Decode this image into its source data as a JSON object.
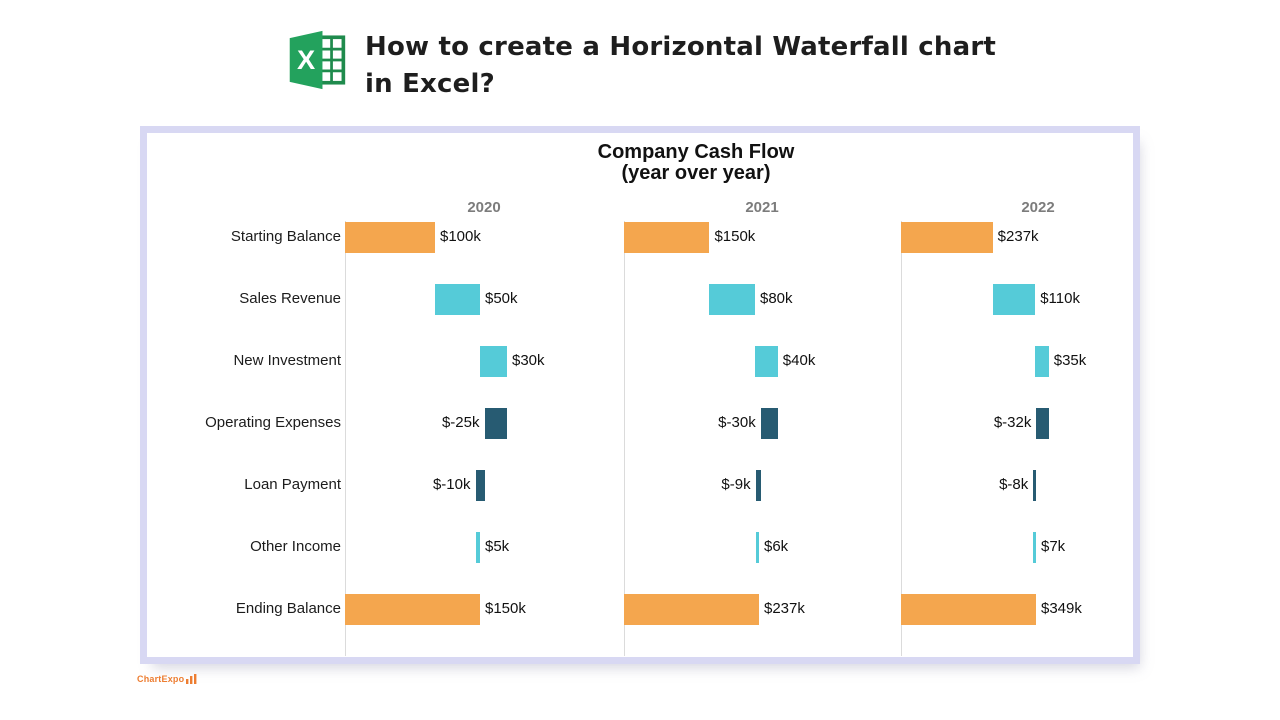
{
  "header": {
    "title_line1": "How to create a Horizontal Waterfall chart",
    "title_line2": "in Excel?",
    "excel_letter": "X"
  },
  "watermark": {
    "text": "ChartExpo",
    "icon": "bar-chart-icon",
    "color": "#ED7D31"
  },
  "chart_data": {
    "type": "bar",
    "subtype": "horizontal-waterfall",
    "orientation": "horizontal",
    "title": "Company Cash Flow",
    "subtitle": "(year over year)",
    "categories": [
      "Starting Balance",
      "Sales Revenue",
      "New Investment",
      "Operating Expenses",
      "Loan Payment",
      "Other Income",
      "Ending Balance"
    ],
    "row_types": [
      "total",
      "increase",
      "increase",
      "decrease",
      "decrease",
      "increase",
      "total"
    ],
    "series": [
      {
        "name": "2020",
        "values": [
          100,
          50,
          30,
          -25,
          -10,
          5,
          150
        ],
        "labels": [
          "$100k",
          "$50k",
          "$30k",
          "$-25k",
          "$-10k",
          "$5k",
          "$150k"
        ]
      },
      {
        "name": "2021",
        "values": [
          150,
          80,
          40,
          -30,
          -9,
          6,
          237
        ],
        "labels": [
          "$150k",
          "$80k",
          "$40k",
          "$-30k",
          "$-9k",
          "$6k",
          "$237k"
        ]
      },
      {
        "name": "2022",
        "values": [
          237,
          110,
          35,
          -32,
          -8,
          7,
          349
        ],
        "labels": [
          "$237k",
          "$110k",
          "$35k",
          "$-32k",
          "$-8k",
          "$7k",
          "$349k"
        ]
      }
    ],
    "value_prefix": "$",
    "value_suffix": "k",
    "colors": {
      "total": "#F4A64E",
      "increase": "#55CBD8",
      "decrease": "#275B72"
    },
    "axis_color": "#DBDBDB",
    "year_label_color": "#7C7C7C",
    "legend": "none",
    "grid": "off"
  }
}
